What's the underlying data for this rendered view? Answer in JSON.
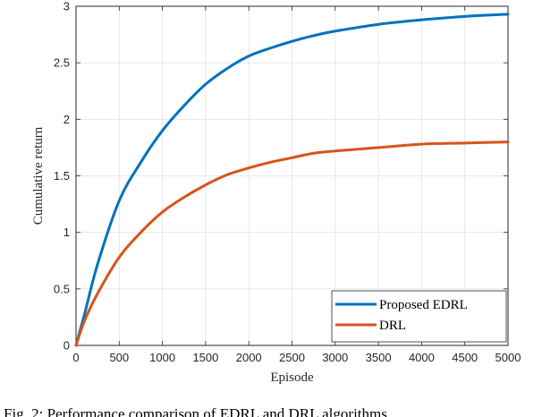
{
  "colors": {
    "proposed": "#0072BD",
    "drl": "#D95319",
    "grid": "#e2e2e2",
    "axis": "#262626"
  },
  "chart_data": {
    "type": "line",
    "title": "",
    "xlabel": "Episode",
    "ylabel": "Cumulative return",
    "xlim": [
      0,
      5000
    ],
    "ylim": [
      0,
      3
    ],
    "xticks": [
      0,
      500,
      1000,
      1500,
      2000,
      2500,
      3000,
      3500,
      4000,
      4500,
      5000
    ],
    "yticks": [
      0,
      0.5,
      1,
      1.5,
      2,
      2.5,
      3
    ],
    "xtick_labels": [
      "0",
      "500",
      "1000",
      "1500",
      "2000",
      "2500",
      "3000",
      "3500",
      "4000",
      "4500",
      "5000"
    ],
    "ytick_labels": [
      "0",
      "0.5",
      "1",
      "1.5",
      "2",
      "2.5",
      "3"
    ],
    "grid": true,
    "legend_position": "bottom-right",
    "x": [
      0,
      100,
      250,
      500,
      750,
      1000,
      1250,
      1500,
      1750,
      2000,
      2250,
      2500,
      2750,
      3000,
      3500,
      4000,
      4500,
      5000
    ],
    "series": [
      {
        "name": "Proposed EDRL",
        "color": "#0072BD",
        "values": [
          0,
          0.28,
          0.72,
          1.28,
          1.62,
          1.9,
          2.12,
          2.31,
          2.45,
          2.56,
          2.63,
          2.69,
          2.74,
          2.78,
          2.84,
          2.88,
          2.91,
          2.93
        ]
      },
      {
        "name": "DRL",
        "color": "#D95319",
        "values": [
          0,
          0.22,
          0.46,
          0.78,
          1.0,
          1.18,
          1.31,
          1.42,
          1.51,
          1.57,
          1.62,
          1.66,
          1.7,
          1.72,
          1.75,
          1.78,
          1.79,
          1.8
        ]
      }
    ]
  },
  "caption": "Fig. 2: Performance comparison of EDRL and DRL algorithms"
}
